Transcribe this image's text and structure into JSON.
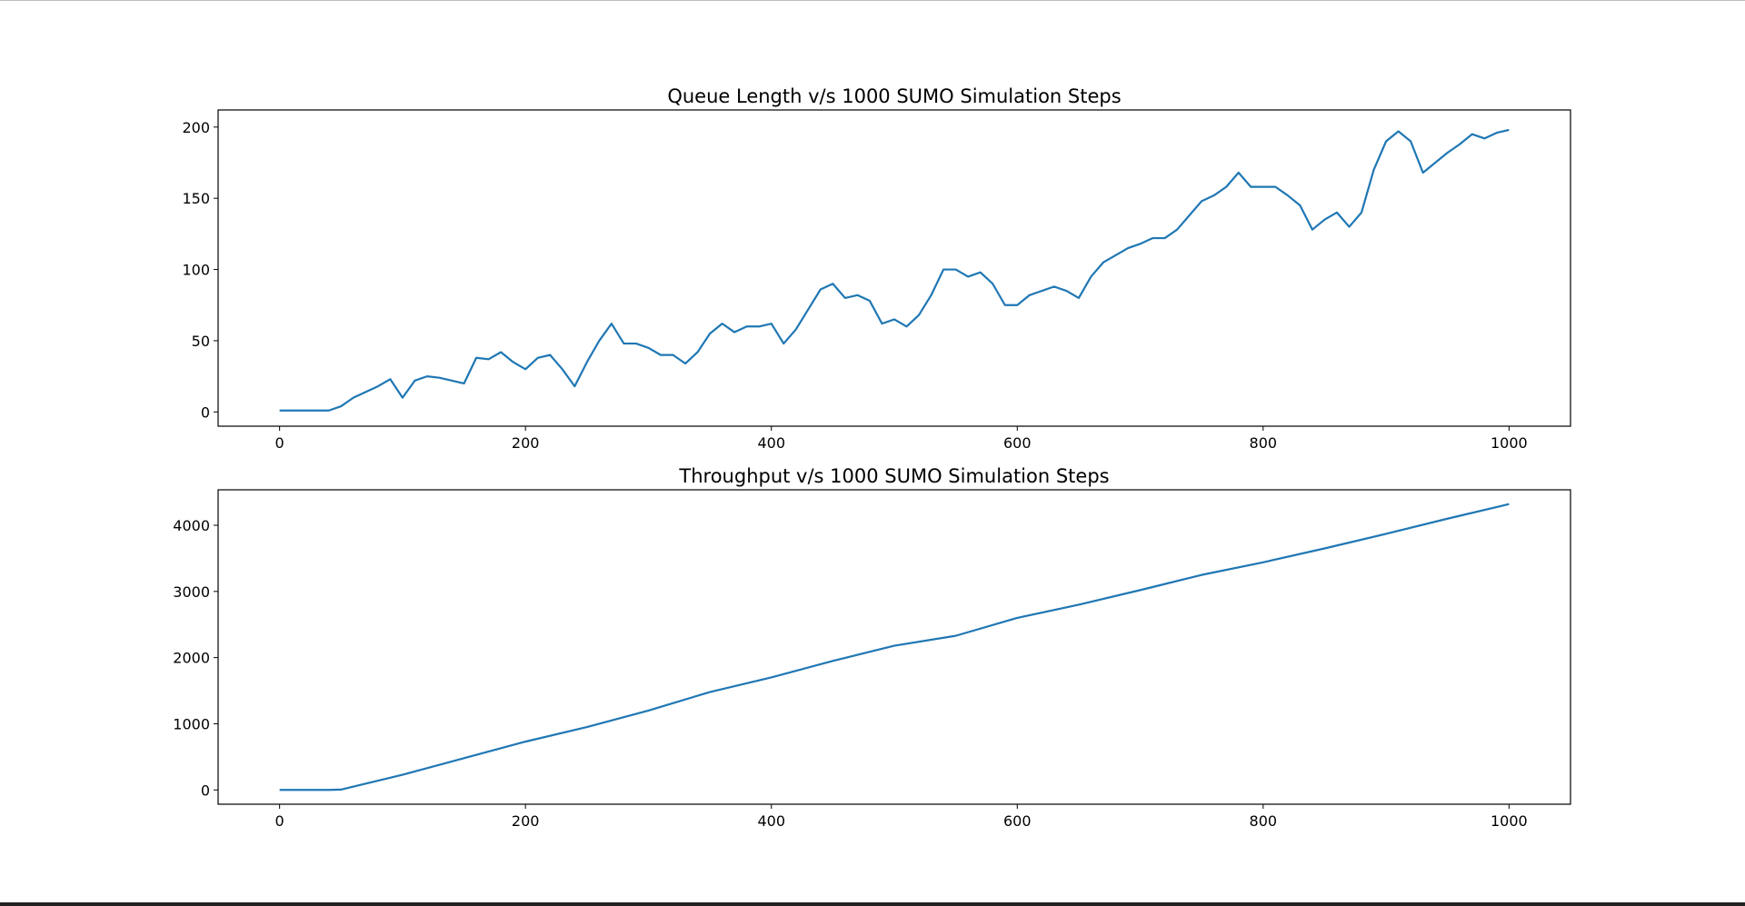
{
  "chart_data": [
    {
      "type": "line",
      "title": "Queue Length v/s 1000 SUMO Simulation Steps",
      "color": "#1f77b4",
      "x": [
        0,
        10,
        20,
        30,
        40,
        50,
        60,
        70,
        80,
        90,
        100,
        110,
        120,
        130,
        140,
        150,
        160,
        170,
        180,
        190,
        200,
        210,
        220,
        230,
        240,
        250,
        260,
        270,
        280,
        290,
        300,
        310,
        320,
        330,
        340,
        350,
        360,
        370,
        380,
        390,
        400,
        410,
        420,
        430,
        440,
        450,
        460,
        470,
        480,
        490,
        500,
        510,
        520,
        530,
        540,
        550,
        560,
        570,
        580,
        590,
        600,
        610,
        620,
        630,
        640,
        650,
        660,
        670,
        680,
        690,
        700,
        710,
        720,
        730,
        740,
        750,
        760,
        770,
        780,
        790,
        800,
        810,
        820,
        830,
        840,
        850,
        860,
        870,
        880,
        890,
        900,
        910,
        920,
        930,
        940,
        950,
        960,
        970,
        980,
        990,
        1000
      ],
      "values": [
        1,
        1,
        1,
        1,
        1,
        4,
        10,
        14,
        18,
        23,
        10,
        22,
        25,
        24,
        22,
        20,
        38,
        37,
        42,
        35,
        30,
        38,
        40,
        30,
        18,
        35,
        50,
        62,
        48,
        48,
        45,
        40,
        40,
        34,
        42,
        55,
        62,
        56,
        60,
        60,
        62,
        48,
        58,
        72,
        86,
        90,
        80,
        82,
        78,
        62,
        65,
        60,
        68,
        82,
        100,
        100,
        95,
        98,
        90,
        75,
        75,
        82,
        85,
        88,
        85,
        80,
        95,
        105,
        110,
        115,
        118,
        122,
        122,
        128,
        138,
        148,
        152,
        158,
        168,
        158,
        158,
        158,
        152,
        145,
        128,
        135,
        140,
        130,
        140,
        170,
        190,
        197,
        190,
        168,
        175,
        182,
        188,
        195,
        192,
        196,
        198
      ],
      "xlim": [
        -50,
        1050
      ],
      "xticks": [
        0,
        200,
        400,
        600,
        800,
        1000
      ],
      "ylim": [
        -10,
        212
      ],
      "yticks": [
        0,
        50,
        100,
        150,
        200
      ]
    },
    {
      "type": "line",
      "title": "Throughput v/s 1000 SUMO Simulation Steps",
      "color": "#1f77b4",
      "x": [
        0,
        40,
        50,
        100,
        150,
        200,
        250,
        300,
        350,
        400,
        450,
        500,
        550,
        600,
        650,
        700,
        750,
        800,
        850,
        900,
        950,
        1000
      ],
      "values": [
        0,
        0,
        5,
        230,
        480,
        730,
        950,
        1200,
        1480,
        1700,
        1950,
        2180,
        2330,
        2600,
        2800,
        3020,
        3250,
        3440,
        3650,
        3870,
        4100,
        4320
      ],
      "xlim": [
        -50,
        1050
      ],
      "xticks": [
        0,
        200,
        400,
        600,
        800,
        1000
      ],
      "ylim": [
        -216,
        4536
      ],
      "yticks": [
        0,
        1000,
        2000,
        3000,
        4000
      ]
    }
  ]
}
